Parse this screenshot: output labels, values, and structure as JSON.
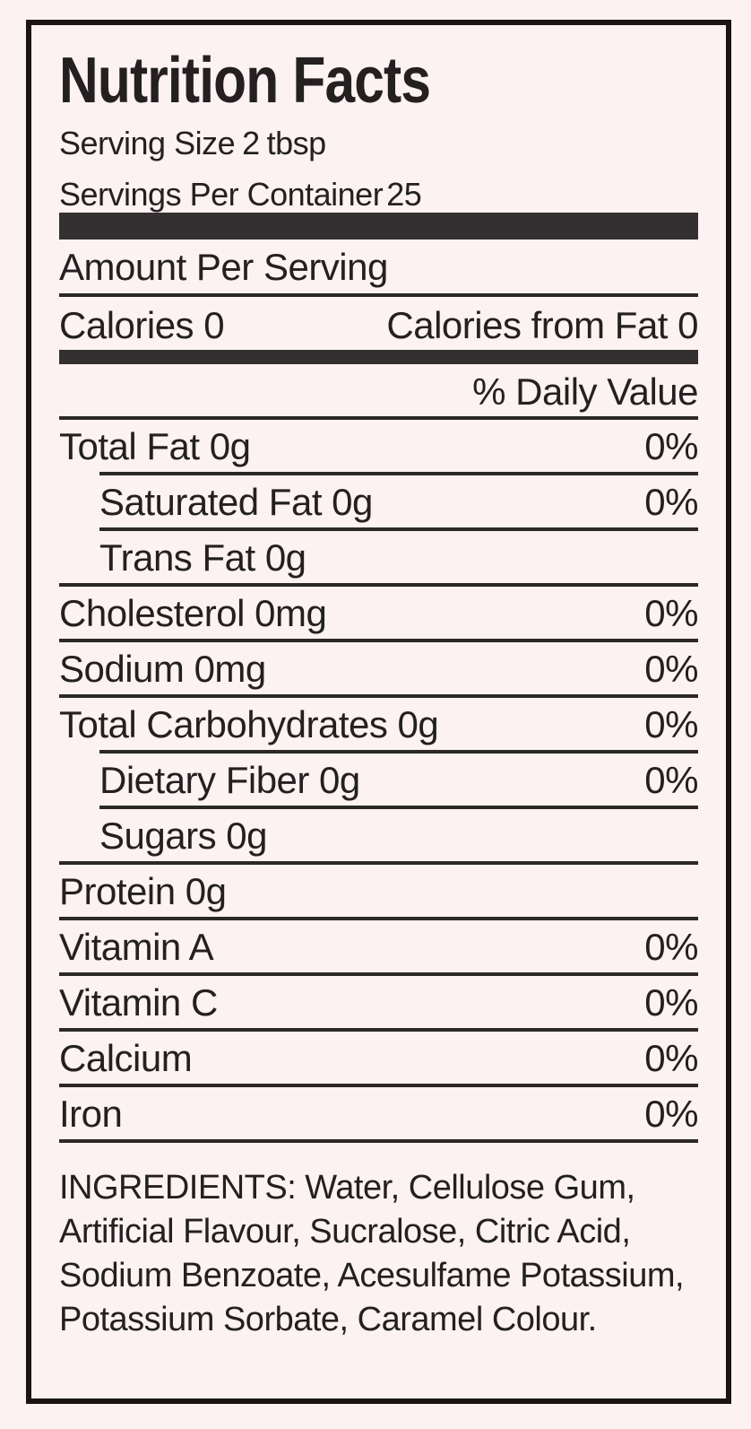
{
  "label": {
    "title": "Nutrition Facts",
    "serving_size_label": "Serving Size",
    "serving_size_value": "2",
    "serving_size_unit": "tbsp",
    "servings_per_container_label": "Servings Per Container",
    "servings_per_container_value": "25",
    "amount_per_serving_heading": "Amount Per Serving",
    "calories_label": "Calories",
    "calories_value": "0",
    "calories_from_fat_label": "Calories from Fat",
    "calories_from_fat_value": "0",
    "daily_value_heading": "% Daily Value",
    "rows": [
      {
        "name": "Total Fat 0g",
        "daily_value": "0%",
        "indent": false,
        "inset_line": true
      },
      {
        "name": "Saturated Fat 0g",
        "daily_value": "0%",
        "indent": true,
        "inset_line": true
      },
      {
        "name": "Trans Fat 0g",
        "daily_value": "",
        "indent": true,
        "inset_line": false
      },
      {
        "name": "Cholesterol 0mg",
        "daily_value": "0%",
        "indent": false,
        "inset_line": false
      },
      {
        "name": "Sodium 0mg",
        "daily_value": "0%",
        "indent": false,
        "inset_line": false
      },
      {
        "name": "Total Carbohydrates 0g",
        "daily_value": "0%",
        "indent": false,
        "inset_line": true
      },
      {
        "name": "Dietary Fiber 0g",
        "daily_value": "0%",
        "indent": true,
        "inset_line": true
      },
      {
        "name": "Sugars 0g",
        "daily_value": "",
        "indent": true,
        "inset_line": false
      },
      {
        "name": "Protein 0g",
        "daily_value": "",
        "indent": false,
        "inset_line": false
      },
      {
        "name": "Vitamin A",
        "daily_value": "0%",
        "indent": false,
        "inset_line": false
      },
      {
        "name": "Vitamin C",
        "daily_value": "0%",
        "indent": false,
        "inset_line": false
      },
      {
        "name": "Calcium",
        "daily_value": "0%",
        "indent": false,
        "inset_line": false
      },
      {
        "name": "Iron",
        "daily_value": "0%",
        "indent": false,
        "inset_line": false
      }
    ],
    "ingredients": "INGREDIENTS: Water, Cellulose Gum, Artificial Flavour, Sucralose, Citric Acid, Sodium Benzoate, Acesulfame Potassium, Potassium Sorbate, Caramel Colour."
  },
  "colors": {
    "background": "#fbf2f1",
    "text": "#242021",
    "divider_line": "#2c2829",
    "section_bar": "#343031",
    "border": "#1a1415"
  }
}
